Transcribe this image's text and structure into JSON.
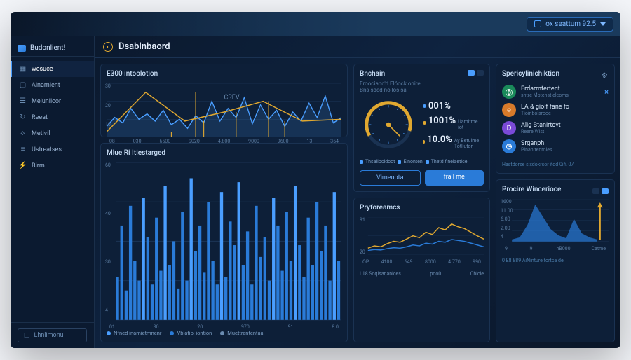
{
  "topbar": {
    "account_label": "ox seattum 92.5"
  },
  "brand": {
    "label": "Budonlient!"
  },
  "sidebar": {
    "items": [
      {
        "label": "wesuce",
        "icon": "grid"
      },
      {
        "label": "Ainamient",
        "icon": "box"
      },
      {
        "label": "Meiuniicor",
        "icon": "layers"
      },
      {
        "label": "Reeat",
        "icon": "refresh"
      },
      {
        "label": "Metivil",
        "icon": "spark"
      },
      {
        "label": "Ustreatses",
        "icon": "list"
      },
      {
        "label": "Birm",
        "icon": "bolt"
      }
    ],
    "footer": {
      "label": "Lhnlimonu"
    }
  },
  "header": {
    "title": "Dsablnbaord"
  },
  "line_chart": {
    "title": "E300 intoolotion",
    "annotation": "CREV",
    "colors": {
      "line1": "#4a9eff",
      "line2": "#e0a830",
      "grid": "#1a3252"
    },
    "x_labels": [
      "08",
      "030",
      "6500",
      "9020",
      "4.800",
      "9000",
      "9600",
      "13",
      "354"
    ],
    "y_labels": [
      "30",
      "20",
      "10"
    ],
    "series1": [
      12,
      22,
      16,
      32,
      20,
      26,
      18,
      30,
      14,
      20,
      10,
      24,
      16,
      40,
      18,
      32,
      22,
      44,
      15,
      36,
      20,
      30,
      12,
      28,
      18,
      38,
      22,
      46,
      16,
      22
    ],
    "series2": [
      0,
      0,
      0,
      0,
      0,
      0,
      0,
      0,
      6,
      0,
      0,
      50,
      18,
      0,
      0,
      0,
      28,
      0,
      0,
      0,
      40,
      0,
      18,
      0,
      0,
      0,
      0,
      0,
      0,
      20
    ]
  },
  "bar_chart": {
    "title": "Mlue Ri Itiestarged",
    "colors": {
      "bar": "#2a7bd8",
      "bar_hi": "#4a9eff",
      "grid": "#1a3252"
    },
    "x_labels": [
      "01",
      "30",
      "20",
      "970",
      "91",
      "8.0"
    ],
    "y_labels": [
      "60",
      "40",
      "30",
      "4"
    ],
    "values": [
      22,
      48,
      15,
      58,
      30,
      20,
      62,
      42,
      18,
      52,
      25,
      68,
      28,
      40,
      16,
      55,
      20,
      72,
      35,
      48,
      24,
      60,
      30,
      18,
      65,
      22,
      50,
      38,
      70,
      28,
      45,
      18,
      58,
      32,
      42,
      20,
      62,
      48,
      25,
      55,
      30,
      68,
      38,
      22,
      52,
      28,
      60,
      35,
      48,
      20,
      65,
      30
    ],
    "legend": [
      {
        "label": "Nfned inamietmnenr",
        "color": "#4a9eff"
      },
      {
        "label": "Vblatio; iontion",
        "color": "#2a7bd8"
      },
      {
        "label": "Muettrententaal",
        "color": "#6a8bb0"
      }
    ]
  },
  "gauge_panel": {
    "title": "Bnchain",
    "subtitle": "Eroocianc'd Elöock onire",
    "subtitle2": "Bns sacd no los sa",
    "gauge": {
      "value_deg": 135,
      "colors": {
        "track": "#1a3252",
        "arc": "#e0a830",
        "needle": "#e0a830",
        "ticks": "#4a9eff"
      }
    },
    "metrics": [
      {
        "value": "001%",
        "dot": "#4a9eff"
      },
      {
        "value": "1001%",
        "sub": "Uamitme iot",
        "dot": "#e0a830"
      },
      {
        "value": "10.0%",
        "sub": "Ay Betuime Totliuton",
        "dot": "#e0a830"
      }
    ],
    "tabs": [
      {
        "label": "Thsallocidoot"
      },
      {
        "label": "Einonten"
      },
      {
        "label": "Thetd finelaetice"
      }
    ],
    "buttons": {
      "outline": "Vimenota",
      "fill": "frall me"
    }
  },
  "perf_chart": {
    "title": "Pryforeamcs",
    "colors": {
      "line": "#e0a830",
      "line2": "#2a7bd8",
      "grid": "#1a3252"
    },
    "x_labels": [
      "OP",
      "4100",
      "649",
      "8000",
      "4.770",
      "990"
    ],
    "y_labels": [
      "91",
      "20"
    ],
    "series": [
      15,
      20,
      18,
      25,
      30,
      28,
      35,
      42,
      38,
      50,
      45,
      60,
      55,
      68,
      62,
      58,
      50,
      42,
      35
    ],
    "series2": [
      10,
      12,
      11,
      14,
      16,
      15,
      18,
      22,
      20,
      26,
      24,
      30,
      28,
      34,
      32,
      30,
      26,
      22,
      18
    ],
    "footer": {
      "left": "L18 Soqisananices",
      "mid": "poo0",
      "right": "Chicie"
    }
  },
  "spec_panel": {
    "title": "Spericylinichiktion",
    "items": [
      {
        "label": "Erdarmtertent",
        "sub": "sntre Motenst elcoms",
        "color": "#1a8a5a",
        "glyph": "Ⓓ",
        "action": "×"
      },
      {
        "label": "LA & gioif fane fo",
        "sub": "Tioinbolsrooe",
        "color": "#d87a2a",
        "glyph": "℮"
      },
      {
        "label": "Alig Btanirtovt",
        "sub": "Reere Wist",
        "color": "#7a4ad8",
        "glyph": "D"
      },
      {
        "label": "Srganph",
        "sub": "Pinanitenroles",
        "color": "#2a7bd8",
        "glyph": "◷"
      }
    ],
    "footer": "Hastdorse sixdokrcor itod 0i% 07"
  },
  "proc_chart": {
    "title": "Procire Wincerioce",
    "colors": {
      "fill": "#2a7bd8",
      "arrow": "#e0a830",
      "grid": "#1a3252"
    },
    "y_labels": [
      "1600",
      "11.00",
      "6.00",
      "2.00",
      "4"
    ],
    "x_labels": [
      "9",
      "i9",
      "1hB000",
      "Catme"
    ],
    "values": [
      5,
      10,
      40,
      90,
      60,
      30,
      15,
      8,
      55,
      20,
      10,
      5
    ],
    "footer": "0 E8 889 AiNinture fortca de"
  }
}
